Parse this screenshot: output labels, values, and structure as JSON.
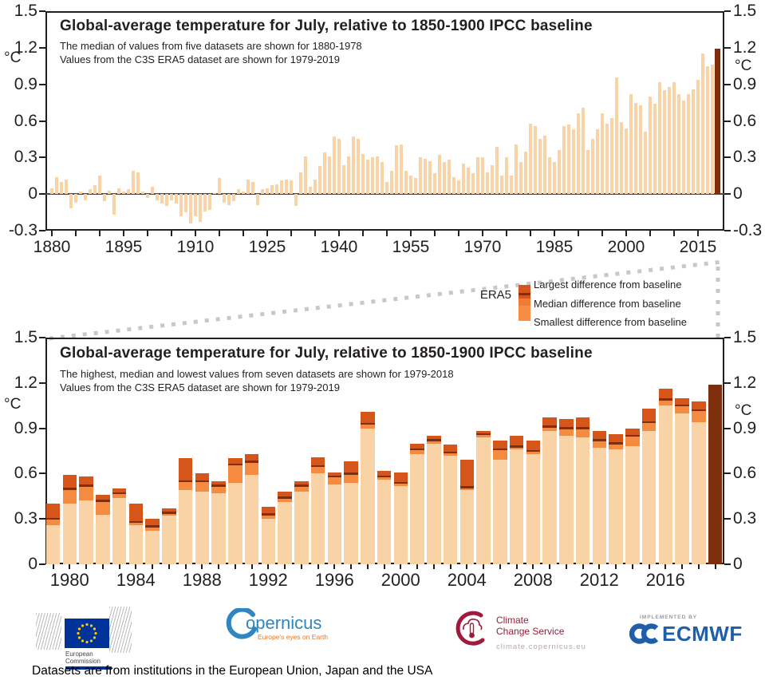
{
  "colors": {
    "bar_light": "#F9D2A5",
    "bar_medium": "#F58B40",
    "bar_dark": "#D5551B",
    "median_line": "#7E2F10",
    "era5_dark": "#7C2E0D",
    "legend_mid": "#EE7B38",
    "legend_small": "#F68D42",
    "axis": "#231F20",
    "zero_line": "#4A4A4C",
    "dash": "#C8C8C8",
    "copernicus_blue": "#2F86C0",
    "copernicus_orange": "#E87722",
    "c3s_red": "#9E1B3B",
    "ecmwf_blue": "#1F5FA9",
    "eu_blue": "#003399",
    "eu_star": "#FFCC00"
  },
  "chart_data": [
    {
      "id": "top",
      "type": "bar",
      "title": "Global-average temperature for July, relative to 1850-1900 IPCC baseline",
      "subtitle1": "The median of values from five datasets are shown for 1880-1978",
      "subtitle2": "Values from the C3S ERA5 dataset are shown for 1979-2019",
      "ylabel": "°C",
      "ylim": [
        -0.3,
        1.5
      ],
      "y_ticks": [
        1.5,
        1.2,
        0.9,
        0.6,
        0.3,
        0,
        -0.3
      ],
      "x_label_years": [
        1880,
        1895,
        1910,
        1925,
        1940,
        1955,
        1970,
        1985,
        2000,
        2015
      ],
      "x_minor_tick_step": 5,
      "start_year": 1880,
      "end_year": 2019,
      "highlight_year": 2019,
      "values": [
        0.05,
        0.14,
        0.1,
        0.12,
        -0.12,
        -0.07,
        0.02,
        -0.05,
        0.04,
        0.07,
        0.15,
        -0.06,
        0.03,
        -0.17,
        0.05,
        0.02,
        0.04,
        0.19,
        0.18,
        0.02,
        -0.03,
        0.06,
        -0.05,
        -0.08,
        -0.1,
        -0.05,
        -0.08,
        -0.18,
        -0.15,
        -0.24,
        -0.18,
        -0.23,
        -0.14,
        -0.13,
        0.01,
        0.13,
        -0.07,
        -0.09,
        -0.06,
        0.04,
        0.02,
        0.12,
        0.1,
        -0.09,
        0.04,
        0.05,
        0.07,
        0.08,
        0.11,
        0.12,
        0.11,
        -0.1,
        0.18,
        0.31,
        0.06,
        0.12,
        0.23,
        0.34,
        0.31,
        0.47,
        0.45,
        0.24,
        0.31,
        0.47,
        0.45,
        0.33,
        0.28,
        0.3,
        0.31,
        0.26,
        0.1,
        0.19,
        0.4,
        0.41,
        0.19,
        0.15,
        0.13,
        0.3,
        0.29,
        0.27,
        0.17,
        0.32,
        0.26,
        0.28,
        0.14,
        0.11,
        0.25,
        0.22,
        0.17,
        0.3,
        0.3,
        0.18,
        0.24,
        0.39,
        0.15,
        0.3,
        0.15,
        0.41,
        0.26,
        0.35,
        0.58,
        0.56,
        0.45,
        0.48,
        0.3,
        0.26,
        0.36,
        0.56,
        0.57,
        0.53,
        0.66,
        0.71,
        0.36,
        0.45,
        0.53,
        0.66,
        0.58,
        0.62,
        0.96,
        0.59,
        0.54,
        0.82,
        0.75,
        0.73,
        0.51,
        0.8,
        0.74,
        0.92,
        0.85,
        0.88,
        0.92,
        0.82,
        0.77,
        0.82,
        0.86,
        0.94,
        1.15,
        1.05,
        1.06,
        1.19
      ]
    },
    {
      "id": "bottom",
      "type": "stacked-range-bar",
      "title": "Global-average temperature for July, relative to 1850-1900 IPCC baseline",
      "subtitle1": "The highest, median and lowest values from seven datasets are shown for 1979-2018",
      "subtitle2": "Values from the C3S ERA5 dataset are shown for 1979-2019",
      "ylabel": "°C",
      "ylim": [
        0,
        1.5
      ],
      "y_ticks": [
        1.5,
        1.2,
        0.9,
        0.6,
        0.3,
        0
      ],
      "x_label_years": [
        1980,
        1984,
        1988,
        1992,
        1996,
        2000,
        2004,
        2008,
        2012,
        2016
      ],
      "x_minor_tick_step": 1,
      "start_year": 1979,
      "end_year": 2019,
      "bar_columns": [
        "year",
        "lowest",
        "median",
        "highest"
      ],
      "bars": [
        [
          1979,
          0.26,
          0.3,
          0.4
        ],
        [
          1980,
          0.4,
          0.5,
          0.59
        ],
        [
          1981,
          0.42,
          0.52,
          0.58
        ],
        [
          1982,
          0.33,
          0.42,
          0.46
        ],
        [
          1983,
          0.44,
          0.47,
          0.5
        ],
        [
          1984,
          0.26,
          0.28,
          0.4
        ],
        [
          1985,
          0.22,
          0.25,
          0.3
        ],
        [
          1986,
          0.32,
          0.34,
          0.37
        ],
        [
          1987,
          0.49,
          0.55,
          0.7
        ],
        [
          1988,
          0.48,
          0.55,
          0.6
        ],
        [
          1989,
          0.47,
          0.52,
          0.55
        ],
        [
          1990,
          0.54,
          0.66,
          0.7
        ],
        [
          1991,
          0.59,
          0.68,
          0.73
        ],
        [
          1992,
          0.3,
          0.33,
          0.38
        ],
        [
          1993,
          0.41,
          0.44,
          0.48
        ],
        [
          1994,
          0.48,
          0.52,
          0.55
        ],
        [
          1995,
          0.6,
          0.65,
          0.71
        ],
        [
          1996,
          0.53,
          0.58,
          0.61
        ],
        [
          1997,
          0.54,
          0.6,
          0.68
        ],
        [
          1998,
          0.9,
          0.93,
          1.01
        ],
        [
          1999,
          0.56,
          0.58,
          0.62
        ],
        [
          2000,
          0.52,
          0.54,
          0.61
        ],
        [
          2001,
          0.73,
          0.76,
          0.8
        ],
        [
          2002,
          0.8,
          0.82,
          0.85
        ],
        [
          2003,
          0.72,
          0.74,
          0.79
        ],
        [
          2004,
          0.49,
          0.51,
          0.69
        ],
        [
          2005,
          0.84,
          0.86,
          0.88
        ],
        [
          2006,
          0.69,
          0.76,
          0.82
        ],
        [
          2007,
          0.76,
          0.78,
          0.85
        ],
        [
          2008,
          0.73,
          0.75,
          0.82
        ],
        [
          2009,
          0.88,
          0.91,
          0.97
        ],
        [
          2010,
          0.85,
          0.9,
          0.96
        ],
        [
          2011,
          0.84,
          0.9,
          0.97
        ],
        [
          2012,
          0.77,
          0.82,
          0.88
        ],
        [
          2013,
          0.76,
          0.8,
          0.86
        ],
        [
          2014,
          0.78,
          0.85,
          0.9
        ],
        [
          2015,
          0.88,
          0.94,
          1.03
        ],
        [
          2016,
          1.05,
          1.09,
          1.16
        ],
        [
          2017,
          1.0,
          1.05,
          1.1
        ],
        [
          2018,
          0.94,
          1.02,
          1.08
        ]
      ],
      "era5_2019": 1.19
    }
  ],
  "legend": {
    "series_label": "ERA5",
    "items": [
      {
        "label": "Largest difference from baseline"
      },
      {
        "label": "Median difference from baseline"
      },
      {
        "label": "Smallest difference from baseline"
      }
    ]
  },
  "logos": {
    "ec": {
      "line1": "European",
      "line2": "Commission"
    },
    "copernicus": {
      "name": "opernicus",
      "tagline": "Europe's eyes on Earth"
    },
    "c3s": {
      "line1": "Climate",
      "line2": "Change Service",
      "url": "climate.copernicus.eu"
    },
    "ecmwf": {
      "implemented_by": "IMPLEMENTED BY",
      "label": "ECMWF"
    }
  },
  "footer": {
    "text": "Datasets are from institutions in the European Union, Japan and the USA"
  }
}
